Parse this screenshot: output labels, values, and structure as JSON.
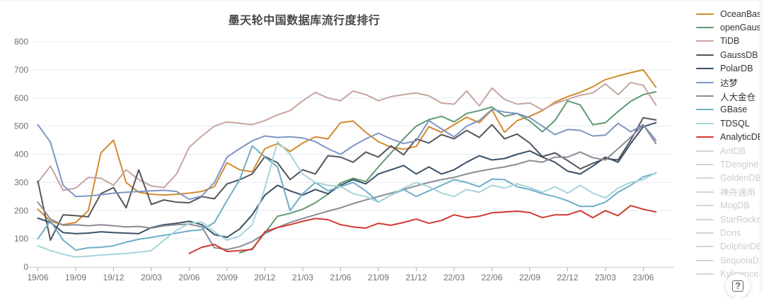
{
  "page": {
    "title_text": "墨天轮中国数据库流行度排行"
  },
  "help_button": {
    "glyph": "?"
  },
  "chart_data": {
    "type": "line",
    "title": "墨天轮中国数据库流行度排行",
    "xlabel": "",
    "ylabel": "",
    "ylim": [
      0,
      800
    ],
    "y_ticks": [
      0,
      100,
      200,
      300,
      400,
      500,
      600,
      700,
      800
    ],
    "grid": true,
    "legend_position": "right",
    "x": [
      "19/06",
      "19/07",
      "19/08",
      "19/09",
      "19/10",
      "19/11",
      "19/12",
      "20/01",
      "20/02",
      "20/03",
      "20/04",
      "20/05",
      "20/06",
      "20/07",
      "20/08",
      "20/09",
      "20/10",
      "20/11",
      "20/12",
      "21/01",
      "21/02",
      "21/03",
      "21/04",
      "21/05",
      "21/06",
      "21/07",
      "21/08",
      "21/09",
      "21/10",
      "21/11",
      "21/12",
      "22/01",
      "22/02",
      "22/03",
      "22/04",
      "22/05",
      "22/06",
      "22/07",
      "22/08",
      "22/09",
      "22/10",
      "22/11",
      "22/12",
      "23/01",
      "23/02",
      "23/03",
      "23/04",
      "23/05",
      "23/06",
      "23/07"
    ],
    "x_tick_indices": [
      0,
      3,
      6,
      9,
      12,
      15,
      18,
      21,
      24,
      27,
      30,
      33,
      36,
      39,
      42,
      45,
      48
    ],
    "x_tick_labels": [
      "19/06",
      "19/09",
      "19/12",
      "20/03",
      "20/06",
      "20/09",
      "20/12",
      "21/03",
      "21/06",
      "21/09",
      "21/12",
      "22/03",
      "22/06",
      "22/09",
      "22/12",
      "23/03",
      "23/06"
    ],
    "series": [
      {
        "name": "OceanBase",
        "color": "#d28a2e",
        "values": [
          205,
          162,
          150,
          158,
          200,
          405,
          450,
          300,
          265,
          258,
          255,
          258,
          262,
          268,
          285,
          370,
          345,
          338,
          420,
          438,
          410,
          440,
          462,
          455,
          512,
          518,
          478,
          445,
          425,
          418,
          428,
          498,
          478,
          505,
          532,
          512,
          558,
          478,
          520,
          535,
          555,
          585,
          605,
          620,
          640,
          665,
          678,
          690,
          700,
          638
        ]
      },
      {
        "name": "openGauss",
        "color": "#5f9a70",
        "values": [
          null,
          null,
          null,
          null,
          null,
          null,
          null,
          null,
          null,
          null,
          null,
          null,
          null,
          null,
          null,
          null,
          50,
          65,
          120,
          180,
          190,
          205,
          228,
          258,
          298,
          315,
          303,
          355,
          405,
          455,
          500,
          523,
          535,
          515,
          545,
          555,
          568,
          535,
          545,
          518,
          480,
          520,
          590,
          575,
          505,
          512,
          552,
          588,
          612,
          622
        ]
      },
      {
        "name": "TiDB",
        "color": "#c7a59e",
        "values": [
          300,
          358,
          272,
          280,
          318,
          315,
          290,
          345,
          310,
          288,
          282,
          330,
          425,
          465,
          500,
          515,
          510,
          505,
          520,
          540,
          555,
          590,
          620,
          600,
          590,
          625,
          612,
          590,
          605,
          612,
          618,
          608,
          582,
          578,
          625,
          572,
          635,
          595,
          578,
          582,
          558,
          580,
          595,
          610,
          618,
          650,
          612,
          655,
          645,
          575
        ]
      },
      {
        "name": "GaussDB",
        "color": "#54555c",
        "values": [
          305,
          95,
          185,
          182,
          178,
          260,
          282,
          210,
          345,
          222,
          238,
          230,
          228,
          250,
          242,
          295,
          310,
          330,
          392,
          370,
          310,
          345,
          330,
          395,
          390,
          372,
          408,
          390,
          430,
          398,
          455,
          440,
          470,
          455,
          485,
          460,
          505,
          455,
          472,
          440,
          392,
          405,
          378,
          348,
          368,
          385,
          380,
          450,
          530,
          522
        ]
      },
      {
        "name": "PolarDB",
        "color": "#3a5068",
        "values": [
          173,
          158,
          122,
          118,
          120,
          125,
          122,
          120,
          118,
          140,
          150,
          155,
          162,
          150,
          115,
          105,
          135,
          185,
          255,
          290,
          270,
          255,
          275,
          260,
          290,
          310,
          295,
          330,
          345,
          360,
          330,
          355,
          330,
          345,
          372,
          395,
          380,
          385,
          400,
          412,
          390,
          372,
          340,
          330,
          358,
          390,
          372,
          438,
          498,
          512
        ]
      },
      {
        "name": "达梦",
        "color": "#7d96c5",
        "values": [
          505,
          443,
          290,
          250,
          252,
          256,
          262,
          265,
          268,
          270,
          272,
          268,
          240,
          252,
          300,
          390,
          420,
          448,
          465,
          460,
          462,
          458,
          445,
          420,
          400,
          430,
          455,
          475,
          455,
          438,
          448,
          520,
          490,
          462,
          500,
          520,
          560,
          550,
          545,
          530,
          500,
          470,
          488,
          485,
          465,
          468,
          510,
          480,
          505,
          450
        ]
      },
      {
        "name": "人大金仓",
        "color": "#8b8b93",
        "values": [
          230,
          170,
          148,
          150,
          146,
          150,
          146,
          142,
          144,
          138,
          146,
          150,
          152,
          142,
          68,
          62,
          72,
          90,
          118,
          140,
          158,
          172,
          185,
          198,
          210,
          225,
          238,
          250,
          262,
          275,
          288,
          300,
          310,
          318,
          330,
          340,
          348,
          355,
          365,
          378,
          372,
          390,
          390,
          408,
          388,
          380,
          420,
          460,
          505,
          438
        ]
      },
      {
        "name": "GBase",
        "color": "#6faec6",
        "values": [
          100,
          163,
          95,
          60,
          68,
          70,
          75,
          88,
          98,
          105,
          112,
          120,
          128,
          132,
          158,
          235,
          310,
          430,
          390,
          355,
          200,
          260,
          300,
          270,
          285,
          300,
          270,
          230,
          255,
          275,
          250,
          270,
          290,
          310,
          300,
          285,
          312,
          310,
          285,
          275,
          260,
          250,
          235,
          215,
          215,
          230,
          265,
          290,
          320,
          333
        ]
      },
      {
        "name": "TDSQL",
        "color": "#a6d4da",
        "values": [
          75,
          58,
          45,
          35,
          38,
          42,
          45,
          48,
          52,
          58,
          95,
          130,
          155,
          160,
          125,
          95,
          110,
          150,
          280,
          445,
          400,
          330,
          300,
          290,
          285,
          260,
          250,
          230,
          255,
          280,
          300,
          285,
          262,
          250,
          275,
          265,
          290,
          280,
          295,
          282,
          265,
          285,
          262,
          290,
          262,
          245,
          280,
          300,
          310,
          335
        ]
      },
      {
        "name": "AnalyticDB",
        "color": "#d03a32",
        "values": [
          null,
          null,
          null,
          null,
          null,
          null,
          null,
          null,
          null,
          null,
          null,
          null,
          48,
          70,
          80,
          55,
          58,
          62,
          125,
          140,
          150,
          162,
          172,
          168,
          150,
          142,
          138,
          155,
          148,
          158,
          170,
          155,
          165,
          185,
          175,
          180,
          192,
          195,
          198,
          193,
          175,
          185,
          185,
          200,
          175,
          200,
          182,
          218,
          205,
          195
        ]
      }
    ],
    "disabled_series": [
      "AntDB",
      "TDengine",
      "GoldenDB",
      "神舟通用",
      "MogDB",
      "StarRocks",
      "Doris",
      "DolphinDB",
      "SequoiaDB",
      "Kyligence"
    ]
  }
}
